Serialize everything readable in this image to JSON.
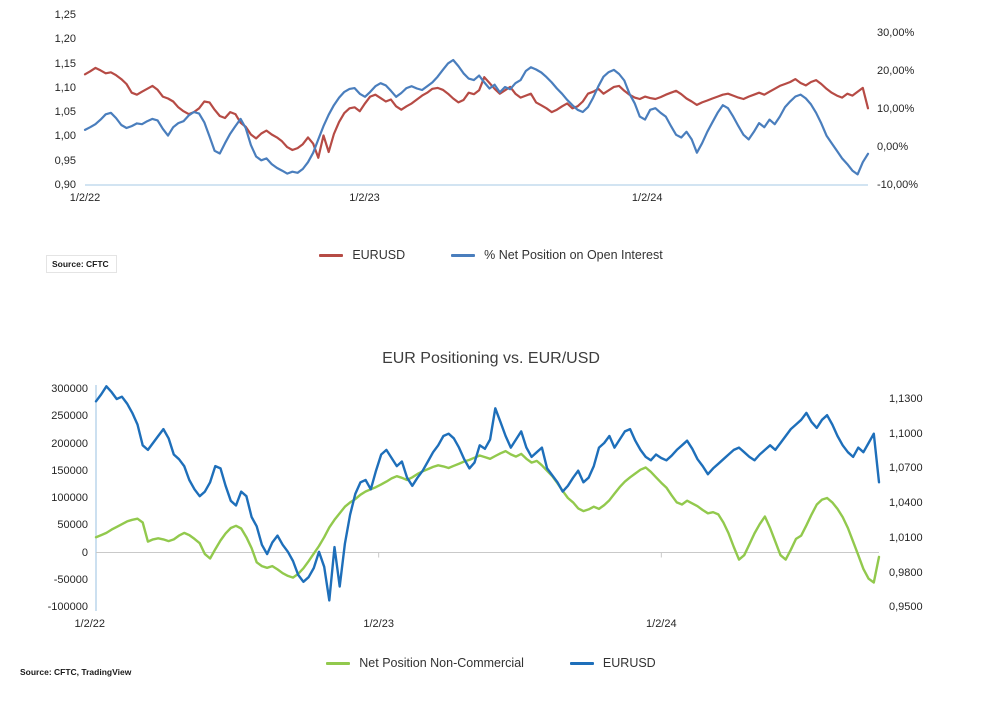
{
  "chart_data": [
    {
      "id": "top",
      "type": "line",
      "title": "",
      "source": "Source: CFTC",
      "legend_position": "bottom",
      "grid": "off",
      "x_tick_labels": [
        "1/2/22",
        "1/2/23",
        "1/2/24"
      ],
      "left_axis": {
        "ticks": [
          "1,25",
          "1,20",
          "1,15",
          "1,10",
          "1,05",
          "1,00",
          "0,95",
          "0,90"
        ],
        "min": 0.9,
        "max": 1.25
      },
      "right_axis": {
        "ticks": [
          "30,00%",
          "20,00%",
          "10,00%",
          "0,00%",
          "-10,00%"
        ],
        "min": -10,
        "max": 30
      },
      "series": [
        {
          "name": "EURUSD",
          "axis": "left",
          "color": "#b64b45",
          "values": [
            1.128,
            1.134,
            1.141,
            1.136,
            1.13,
            1.132,
            1.126,
            1.118,
            1.108,
            1.09,
            1.086,
            1.092,
            1.098,
            1.104,
            1.096,
            1.082,
            1.078,
            1.072,
            1.06,
            1.052,
            1.046,
            1.05,
            1.058,
            1.072,
            1.07,
            1.055,
            1.042,
            1.038,
            1.05,
            1.046,
            1.028,
            1.02,
            1.004,
            0.996,
            1.006,
            1.012,
            1.004,
            0.998,
            0.99,
            0.978,
            0.972,
            0.976,
            0.984,
            0.998,
            0.985,
            0.956,
            1.002,
            0.968,
            1.005,
            1.03,
            1.048,
            1.058,
            1.06,
            1.052,
            1.068,
            1.082,
            1.086,
            1.079,
            1.072,
            1.076,
            1.062,
            1.055,
            1.062,
            1.068,
            1.076,
            1.084,
            1.09,
            1.098,
            1.1,
            1.096,
            1.088,
            1.078,
            1.07,
            1.075,
            1.09,
            1.087,
            1.095,
            1.122,
            1.11,
            1.098,
            1.088,
            1.095,
            1.102,
            1.088,
            1.08,
            1.084,
            1.088,
            1.07,
            1.064,
            1.058,
            1.05,
            1.055,
            1.062,
            1.068,
            1.058,
            1.062,
            1.072,
            1.088,
            1.092,
            1.098,
            1.088,
            1.095,
            1.102,
            1.104,
            1.094,
            1.086,
            1.08,
            1.077,
            1.082,
            1.079,
            1.077,
            1.081,
            1.086,
            1.09,
            1.094,
            1.087,
            1.078,
            1.072,
            1.065,
            1.07,
            1.074,
            1.078,
            1.082,
            1.086,
            1.088,
            1.084,
            1.08,
            1.077,
            1.082,
            1.086,
            1.09,
            1.086,
            1.092,
            1.098,
            1.104,
            1.108,
            1.112,
            1.118,
            1.11,
            1.105,
            1.112,
            1.116,
            1.108,
            1.098,
            1.09,
            1.084,
            1.08,
            1.088,
            1.084,
            1.092,
            1.1,
            1.058
          ]
        },
        {
          "name": "% Net Position on Open Interest",
          "axis": "right",
          "color": "#4a7ebd",
          "values": [
            4.5,
            5.2,
            6.0,
            7.2,
            8.6,
            9.0,
            7.6,
            5.8,
            5.0,
            5.5,
            6.2,
            6.0,
            6.8,
            7.4,
            7.0,
            4.8,
            3.0,
            5.2,
            6.3,
            6.8,
            8.3,
            9.2,
            8.8,
            6.5,
            2.8,
            -1.0,
            -1.7,
            1.0,
            3.5,
            5.5,
            7.4,
            5.0,
            0.5,
            -2.5,
            -3.5,
            -3.0,
            -4.5,
            -5.5,
            -6.2,
            -7.0,
            -6.5,
            -6.8,
            -5.8,
            -4.0,
            -1.5,
            2.0,
            5.5,
            8.5,
            11.0,
            13.0,
            14.5,
            15.3,
            15.5,
            14.0,
            13.2,
            14.5,
            16.0,
            16.8,
            16.2,
            14.8,
            13.2,
            14.2,
            15.5,
            16.0,
            15.4,
            15.0,
            16.0,
            17.0,
            18.5,
            20.3,
            22.0,
            22.9,
            21.3,
            19.4,
            18.0,
            17.6,
            18.8,
            17.0,
            15.4,
            16.4,
            14.4,
            15.8,
            15.2,
            16.8,
            17.6,
            20.0,
            21.0,
            20.4,
            19.6,
            18.4,
            17.0,
            15.4,
            14.0,
            12.4,
            11.0,
            9.8,
            9.2,
            10.5,
            13.0,
            16.0,
            18.5,
            19.7,
            20.3,
            19.2,
            17.5,
            14.0,
            11.5,
            8.0,
            7.2,
            9.8,
            10.2,
            9.0,
            8.0,
            5.5,
            3.2,
            2.5,
            4.0,
            2.0,
            -1.5,
            1.0,
            4.0,
            6.5,
            9.0,
            11.0,
            10.2,
            8.0,
            5.5,
            3.2,
            2.0,
            4.0,
            6.3,
            5.2,
            7.2,
            6.0,
            8.0,
            10.5,
            12.0,
            13.3,
            13.8,
            12.8,
            11.2,
            9.0,
            6.2,
            3.0,
            1.0,
            -1.0,
            -3.0,
            -4.5,
            -6.2,
            -7.2,
            -4.0,
            -1.8
          ]
        }
      ]
    },
    {
      "id": "bottom",
      "type": "line",
      "title": "EUR Positioning vs. EUR/USD",
      "source": "Source: CFTC, TradingView",
      "legend_position": "bottom",
      "grid": "zero-line-only",
      "x_tick_labels": [
        "1/2/22",
        "1/2/23",
        "1/2/24"
      ],
      "left_axis": {
        "ticks": [
          "300000",
          "250000",
          "200000",
          "150000",
          "100000",
          "50000",
          "0",
          "-50000",
          "-100000"
        ],
        "min": -100000,
        "max": 300000
      },
      "right_axis": {
        "ticks": [
          "1,1300",
          "1,1000",
          "1,0700",
          "1,0400",
          "1,0100",
          "0,9800",
          "0,9500"
        ],
        "min": 0.95,
        "max": 1.13
      },
      "series": [
        {
          "name": "Net Position Non-Commercial",
          "axis": "left",
          "color": "#92c94d",
          "values": [
            28000,
            32000,
            36000,
            42000,
            47000,
            52000,
            57000,
            60000,
            62000,
            55000,
            20000,
            24000,
            26000,
            24000,
            21000,
            24000,
            31000,
            36000,
            32000,
            25000,
            17000,
            -3000,
            -11000,
            6000,
            22000,
            35000,
            45000,
            49000,
            44000,
            28000,
            8000,
            -18000,
            -25000,
            -28000,
            -25000,
            -31000,
            -38000,
            -43000,
            -46000,
            -39000,
            -29000,
            -16000,
            -2000,
            12000,
            28000,
            46000,
            60000,
            72000,
            84000,
            92000,
            98000,
            106000,
            112000,
            116000,
            120000,
            125000,
            130000,
            136000,
            140000,
            137000,
            133000,
            138000,
            144000,
            149000,
            153000,
            157000,
            160000,
            158000,
            155000,
            159000,
            163000,
            167000,
            170000,
            174000,
            178000,
            175000,
            172000,
            177000,
            182000,
            186000,
            180000,
            176000,
            181000,
            172000,
            165000,
            168000,
            160000,
            150000,
            140000,
            127000,
            113000,
            100000,
            92000,
            81000,
            76000,
            79000,
            84000,
            80000,
            87000,
            96000,
            108000,
            120000,
            130000,
            138000,
            145000,
            152000,
            156000,
            148000,
            138000,
            128000,
            119000,
            105000,
            92000,
            88000,
            95000,
            90000,
            85000,
            78000,
            72000,
            74000,
            70000,
            55000,
            35000,
            10000,
            -13000,
            -5000,
            15000,
            35000,
            52000,
            66000,
            45000,
            20000,
            -5000,
            -13000,
            5000,
            25000,
            31000,
            50000,
            70000,
            88000,
            97000,
            100000,
            92000,
            80000,
            65000,
            45000,
            20000,
            -5000,
            -30000,
            -48000,
            -55000,
            -8000
          ]
        },
        {
          "name": "EURUSD",
          "axis": "right",
          "color": "#1e6fba",
          "values": [
            1.128,
            1.134,
            1.141,
            1.136,
            1.13,
            1.132,
            1.126,
            1.118,
            1.108,
            1.09,
            1.086,
            1.092,
            1.098,
            1.104,
            1.096,
            1.082,
            1.078,
            1.072,
            1.06,
            1.052,
            1.046,
            1.05,
            1.058,
            1.072,
            1.07,
            1.055,
            1.042,
            1.038,
            1.05,
            1.046,
            1.028,
            1.02,
            1.004,
            0.996,
            1.006,
            1.012,
            1.004,
            0.998,
            0.99,
            0.978,
            0.972,
            0.976,
            0.984,
            0.998,
            0.985,
            0.956,
            1.002,
            0.968,
            1.005,
            1.03,
            1.048,
            1.058,
            1.06,
            1.052,
            1.068,
            1.082,
            1.086,
            1.079,
            1.072,
            1.076,
            1.062,
            1.055,
            1.062,
            1.068,
            1.076,
            1.084,
            1.09,
            1.098,
            1.1,
            1.096,
            1.088,
            1.078,
            1.07,
            1.075,
            1.09,
            1.087,
            1.095,
            1.122,
            1.11,
            1.098,
            1.088,
            1.095,
            1.102,
            1.088,
            1.08,
            1.084,
            1.088,
            1.07,
            1.064,
            1.058,
            1.05,
            1.055,
            1.062,
            1.068,
            1.058,
            1.062,
            1.072,
            1.088,
            1.092,
            1.098,
            1.088,
            1.095,
            1.102,
            1.104,
            1.094,
            1.086,
            1.08,
            1.077,
            1.082,
            1.079,
            1.077,
            1.081,
            1.086,
            1.09,
            1.094,
            1.087,
            1.078,
            1.072,
            1.065,
            1.07,
            1.074,
            1.078,
            1.082,
            1.086,
            1.088,
            1.084,
            1.08,
            1.077,
            1.082,
            1.086,
            1.09,
            1.086,
            1.092,
            1.098,
            1.104,
            1.108,
            1.112,
            1.118,
            1.11,
            1.105,
            1.112,
            1.116,
            1.108,
            1.098,
            1.09,
            1.084,
            1.08,
            1.088,
            1.084,
            1.092,
            1.1,
            1.058
          ]
        }
      ]
    }
  ]
}
